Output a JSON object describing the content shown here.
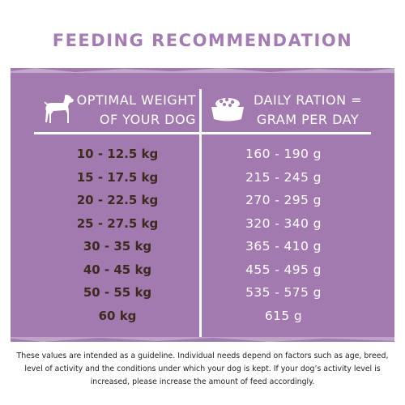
{
  "title": "FEEDING RECOMMENDATION",
  "header": {
    "left_icon": "dog-icon",
    "left_line1": "OPTIMAL WEIGHT",
    "left_line2": "OF YOUR DOG",
    "right_icon": "food-bowl-icon",
    "right_line1": "DAILY RATION =",
    "right_line2": "GRAM PER DAY"
  },
  "rows": [
    {
      "weight": "10 - 12.5 kg",
      "ration": "160 - 190 g"
    },
    {
      "weight": "15 - 17.5 kg",
      "ration": "215 - 245 g"
    },
    {
      "weight": "20 - 22.5 kg",
      "ration": "270 - 295 g"
    },
    {
      "weight": "25 - 27.5 kg",
      "ration": "320 - 340 g"
    },
    {
      "weight": "30 - 35 kg",
      "ration": "365 - 410 g"
    },
    {
      "weight": "40 - 45 kg",
      "ration": "455 - 495 g"
    },
    {
      "weight": "50 - 55 kg",
      "ration": "535 - 575 g"
    },
    {
      "weight": "60 kg",
      "ration": "615 g"
    }
  ],
  "note": "These values are intended as a guideline. Individual needs depend on factors such as age, breed, level of activity and the conditions under which your dog is kept. If your dog’s activity level is increased, please increase the amount of feed accordingly.",
  "colors": {
    "title": "#a47bb5",
    "panel": "#a27ab0",
    "weight_text": "#3d2b1f",
    "ration_text": "#ffffff"
  }
}
